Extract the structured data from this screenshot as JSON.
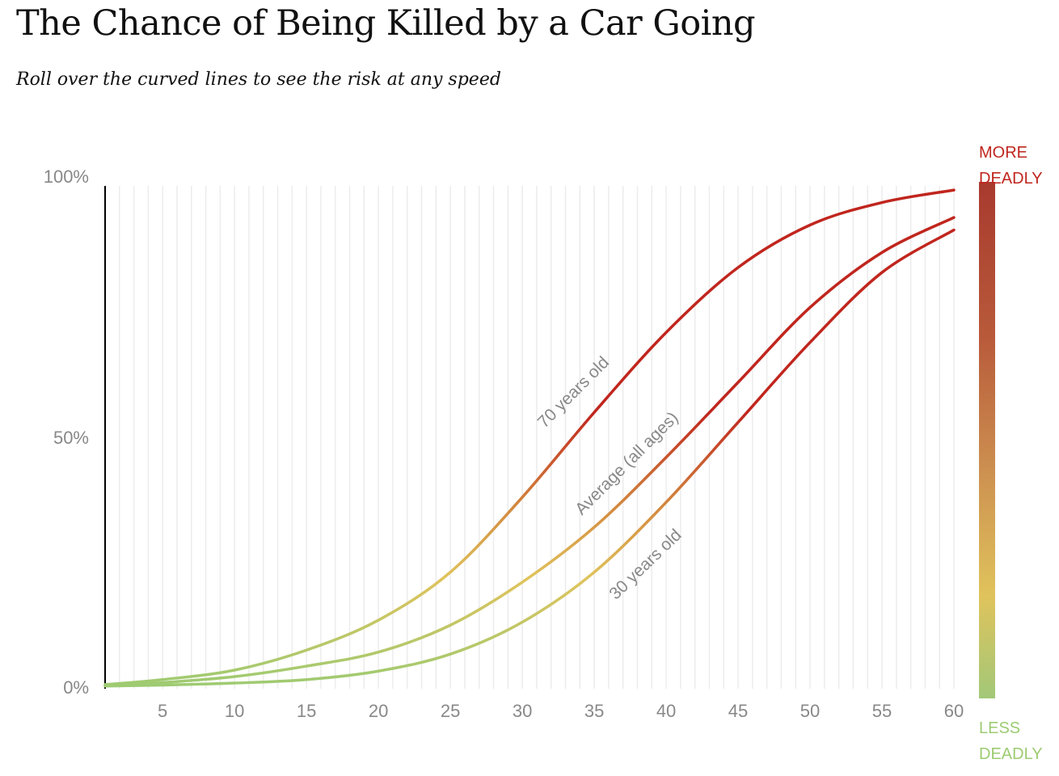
{
  "title": "The Chance of Being Killed by a Car Going",
  "subtitle": "Roll over the curved lines to see the risk at any speed",
  "legend": {
    "top_line1": "MORE",
    "top_line2": "DEADLY",
    "bottom_line1": "LESS",
    "bottom_line2": "DEADLY",
    "colors": {
      "more": "#c0261e",
      "mid": "#e0c35c",
      "less": "#9dcb72"
    }
  },
  "chart_data": {
    "type": "line",
    "title": "",
    "xlabel": "",
    "ylabel": "",
    "xlim": [
      1,
      60
    ],
    "ylim": [
      0,
      100
    ],
    "x_ticks": [
      5,
      10,
      15,
      20,
      25,
      30,
      35,
      40,
      45,
      50,
      55,
      60
    ],
    "x_tick_labels": [
      "5",
      "10",
      "15",
      "20",
      "25",
      "30",
      "35",
      "40",
      "45",
      "50",
      "55",
      "60"
    ],
    "y_ticks": [
      0,
      50,
      100
    ],
    "y_tick_labels": [
      "0%",
      "50%",
      "100%"
    ],
    "grid": "vertical lines every 1 unit",
    "x": [
      1,
      5,
      10,
      15,
      20,
      25,
      30,
      35,
      40,
      45,
      50,
      55,
      60
    ],
    "series": [
      {
        "name": "70 years old",
        "values": [
          0.5,
          1.5,
          3.4,
          7.4,
          13.4,
          23,
          38,
          55,
          71,
          84,
          92.5,
          97,
          99.5
        ]
      },
      {
        "name": "Average (all ages)",
        "values": [
          0.3,
          0.9,
          2.1,
          4.2,
          7,
          12.4,
          21,
          32,
          46,
          61,
          76,
          87,
          94
        ]
      },
      {
        "name": "30 years old",
        "values": [
          0.2,
          0.4,
          0.8,
          1.5,
          3.2,
          6.6,
          13,
          23,
          37,
          53,
          69,
          83,
          91.5
        ]
      }
    ]
  }
}
